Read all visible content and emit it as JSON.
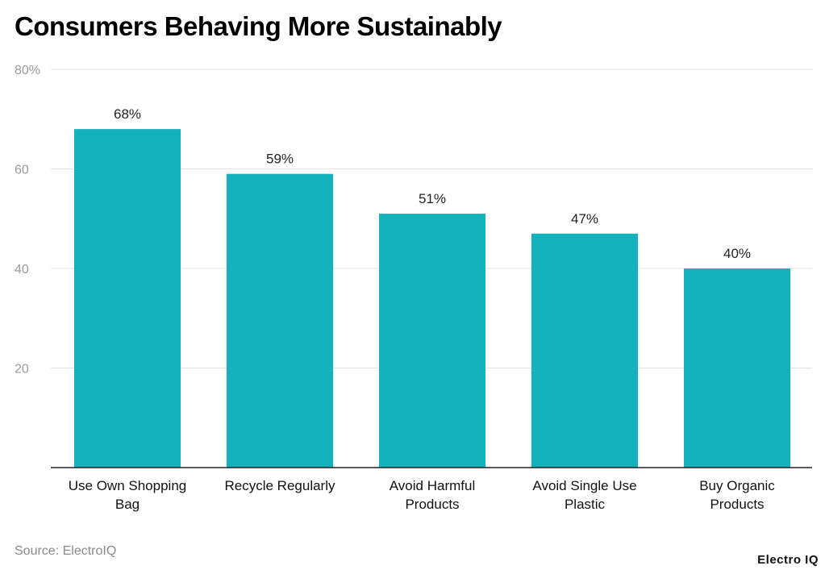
{
  "title": "Consumers Behaving More Sustainably",
  "source": "Source: ElectroIQ",
  "brand": "Electro IQ",
  "colors": {
    "bar": "#14b2bb",
    "grid": "#e3e3e3",
    "axis": "#222222"
  },
  "chart_data": {
    "type": "bar",
    "title": "Consumers Behaving More Sustainably",
    "categories": [
      [
        "Use Own Shopping",
        "Bag"
      ],
      [
        "Recycle Regularly"
      ],
      [
        "Avoid Harmful",
        "Products"
      ],
      [
        "Avoid Single Use",
        "Plastic"
      ],
      [
        "Buy Organic",
        "Products"
      ]
    ],
    "values": [
      68,
      59,
      51,
      47,
      40
    ],
    "data_labels": [
      "68%",
      "59%",
      "51%",
      "47%",
      "40%"
    ],
    "ylim": [
      0,
      80
    ],
    "yticks": [
      {
        "value": 20,
        "label": "20"
      },
      {
        "value": 40,
        "label": "40"
      },
      {
        "value": 60,
        "label": "60"
      },
      {
        "value": 80,
        "label": "80%"
      }
    ],
    "grid": true,
    "xlabel": "",
    "ylabel": ""
  }
}
